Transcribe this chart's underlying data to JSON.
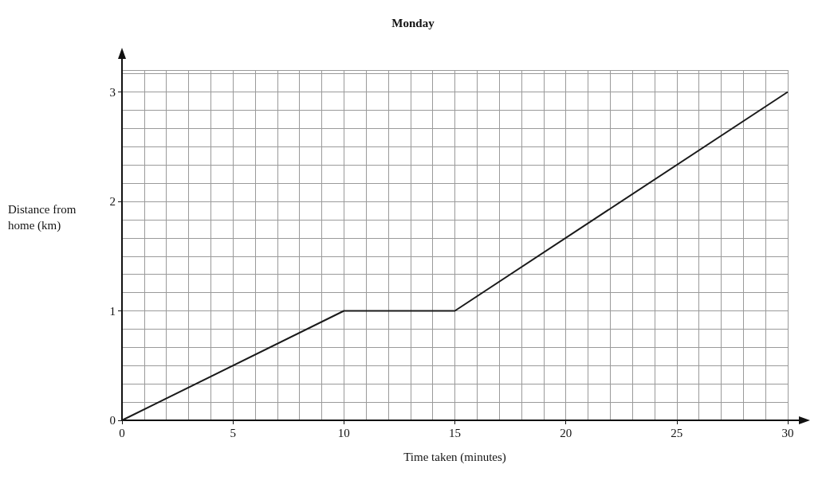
{
  "chart_data": {
    "type": "line",
    "title": "Monday",
    "xlabel": "Time taken (minutes)",
    "ylabel": "Distance from home (km)",
    "series": [
      {
        "color": "#1a1a1a",
        "x": [
          0,
          10,
          15,
          30
        ],
        "values": [
          0,
          1,
          1,
          3
        ]
      }
    ],
    "xlim": [
      0,
      30
    ],
    "xticks": [
      0,
      5,
      10,
      15,
      20,
      25,
      30
    ],
    "ylim": [
      0,
      3.2
    ],
    "yticks": [
      0,
      1,
      2,
      3
    ],
    "grid": true,
    "marker": "none",
    "line_style": "solid"
  }
}
